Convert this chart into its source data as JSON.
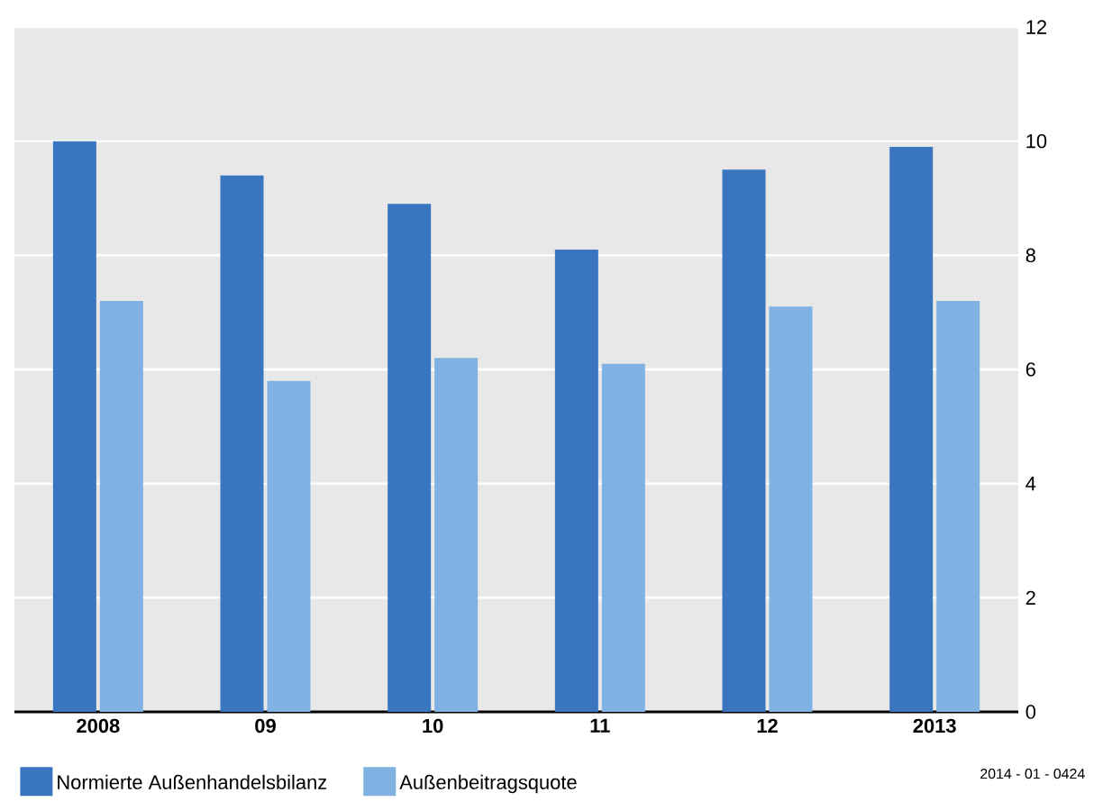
{
  "chart_data": {
    "type": "bar",
    "categories": [
      "2008",
      "09",
      "10",
      "11",
      "12",
      "2013"
    ],
    "series": [
      {
        "name": "Normierte Außenhandelsbilanz",
        "color": "#3a75c0",
        "values": [
          10.0,
          9.4,
          8.9,
          8.1,
          9.5,
          9.9
        ]
      },
      {
        "name": "Außenbeitragsquote",
        "color": "#7fb2e2",
        "values": [
          7.2,
          5.8,
          6.2,
          6.1,
          7.1,
          7.2
        ]
      }
    ],
    "ylim": [
      0,
      12
    ],
    "yticks": [
      0,
      2,
      4,
      6,
      8,
      10,
      12
    ],
    "grid": "y",
    "legend": "bottom left",
    "annotations": [
      "2014 - 01 - 0424"
    ]
  }
}
